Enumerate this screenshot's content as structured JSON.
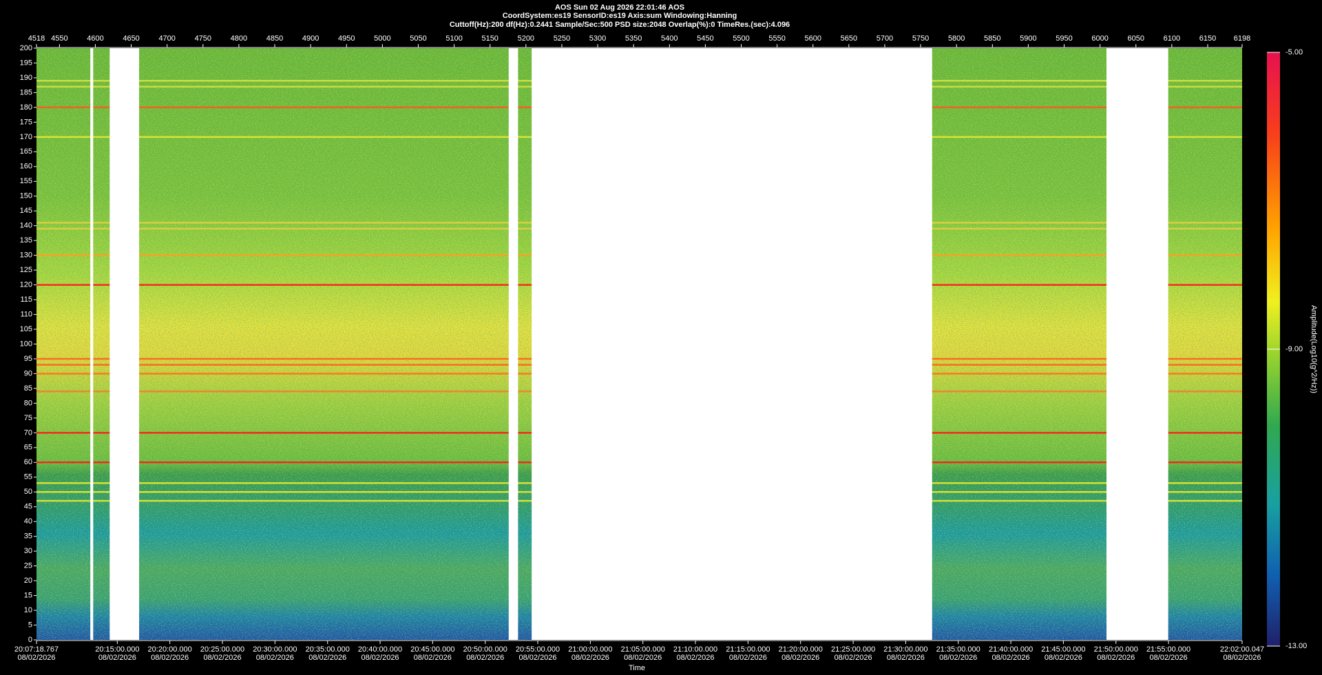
{
  "chart_data": {
    "type": "spectrogram",
    "title": "AOS  Sun 02 Aug 2026 22:01:46  AOS",
    "subtitle": "CoordSystem:es19   SensorID:es19   Axis:sum   Windowing:Hanning",
    "parameters": "Cuttoff(Hz):200     df(Hz):0.2441     Sample/Sec:500     PSD size:2048     Overlap(%):0     TimeRes.(sec):4.096",
    "xlabel": "Time",
    "colorbar_label": "Amplitude(Log10(g^2/Hz))",
    "xlim": [
      4518,
      6198
    ],
    "xticks": [
      4518,
      4550,
      4600,
      4650,
      4700,
      4750,
      4800,
      4850,
      4900,
      4950,
      5000,
      5050,
      5100,
      5150,
      5200,
      5250,
      5300,
      5350,
      5400,
      5450,
      5500,
      5550,
      5600,
      5650,
      5700,
      5750,
      5800,
      5850,
      5900,
      5950,
      6000,
      6050,
      6100,
      6150,
      6198
    ],
    "time_ticks": [
      {
        "value": 4518,
        "label": "20:07:18.767",
        "date": "08/02/2026"
      },
      {
        "value": 4630.6,
        "label": "20:15:00.000",
        "date": "08/02/2026"
      },
      {
        "value": 4703.8,
        "label": "20:20:00.000",
        "date": "08/02/2026"
      },
      {
        "value": 4777.1,
        "label": "20:25:00.000",
        "date": "08/02/2026"
      },
      {
        "value": 4850.3,
        "label": "20:30:00.000",
        "date": "08/02/2026"
      },
      {
        "value": 4923.6,
        "label": "20:35:00.000",
        "date": "08/02/2026"
      },
      {
        "value": 4996.8,
        "label": "20:40:00.000",
        "date": "08/02/2026"
      },
      {
        "value": 5070.0,
        "label": "20:45:00.000",
        "date": "08/02/2026"
      },
      {
        "value": 5143.3,
        "label": "20:50:00.000",
        "date": "08/02/2026"
      },
      {
        "value": 5216.5,
        "label": "20:55:00.000",
        "date": "08/02/2026"
      },
      {
        "value": 5289.8,
        "label": "21:00:00.000",
        "date": "08/02/2026"
      },
      {
        "value": 5363.0,
        "label": "21:05:00.000",
        "date": "08/02/2026"
      },
      {
        "value": 5436.2,
        "label": "21:10:00.000",
        "date": "08/02/2026"
      },
      {
        "value": 5509.5,
        "label": "21:15:00.000",
        "date": "08/02/2026"
      },
      {
        "value": 5582.7,
        "label": "21:20:00.000",
        "date": "08/02/2026"
      },
      {
        "value": 5656.0,
        "label": "21:25:00.000",
        "date": "08/02/2026"
      },
      {
        "value": 5729.2,
        "label": "21:30:00.000",
        "date": "08/02/2026"
      },
      {
        "value": 5802.4,
        "label": "21:35:00.000",
        "date": "08/02/2026"
      },
      {
        "value": 5875.7,
        "label": "21:40:00.000",
        "date": "08/02/2026"
      },
      {
        "value": 5948.9,
        "label": "21:45:00.000",
        "date": "08/02/2026"
      },
      {
        "value": 6022.2,
        "label": "21:50:00.000",
        "date": "08/02/2026"
      },
      {
        "value": 6095.4,
        "label": "21:55:00.000",
        "date": "08/02/2026"
      },
      {
        "value": 6198,
        "label": "22:02:00.047",
        "date": "08/02/2026"
      }
    ],
    "ylim": [
      0,
      200
    ],
    "yticks": [
      0,
      5,
      10,
      15,
      20,
      25,
      30,
      35,
      40,
      45,
      50,
      55,
      60,
      65,
      70,
      75,
      80,
      85,
      90,
      95,
      100,
      105,
      110,
      115,
      120,
      125,
      130,
      135,
      140,
      145,
      150,
      155,
      160,
      165,
      170,
      175,
      180,
      185,
      190,
      195,
      200
    ],
    "clim": [
      -13,
      -5
    ],
    "cticks": [
      {
        "value": -5,
        "label": "-5.00"
      },
      {
        "value": -9,
        "label": "-9.00"
      },
      {
        "value": -13,
        "label": "-13.00"
      }
    ],
    "spectral_lines": [
      {
        "value": 189,
        "color": "#d8e040"
      },
      {
        "value": 187,
        "color": "#d8e040"
      },
      {
        "value": 180,
        "color": "#ff5a1e"
      },
      {
        "value": 170,
        "color": "#e8e830"
      },
      {
        "value": 141,
        "color": "#e0d040"
      },
      {
        "value": 139,
        "color": "#e0d040"
      },
      {
        "value": 130,
        "color": "#ffa020"
      },
      {
        "value": 120,
        "color": "#ff1a1a"
      },
      {
        "value": 95,
        "color": "#ff6020"
      },
      {
        "value": 93,
        "color": "#ff6020"
      },
      {
        "value": 90,
        "color": "#ff7020"
      },
      {
        "value": 84,
        "color": "#f08030"
      },
      {
        "value": 70,
        "color": "#ff1a1a"
      },
      {
        "value": 60,
        "color": "#ff1a1a"
      },
      {
        "value": 53,
        "color": "#e8e830"
      },
      {
        "value": 50,
        "color": "#e8e830"
      },
      {
        "value": 47,
        "color": "#e8e830"
      }
    ],
    "gaps": [
      [
        4593,
        4597
      ],
      [
        4620,
        4661
      ],
      [
        5176,
        5189
      ],
      [
        5208,
        5766
      ],
      [
        6009,
        6095
      ]
    ]
  }
}
